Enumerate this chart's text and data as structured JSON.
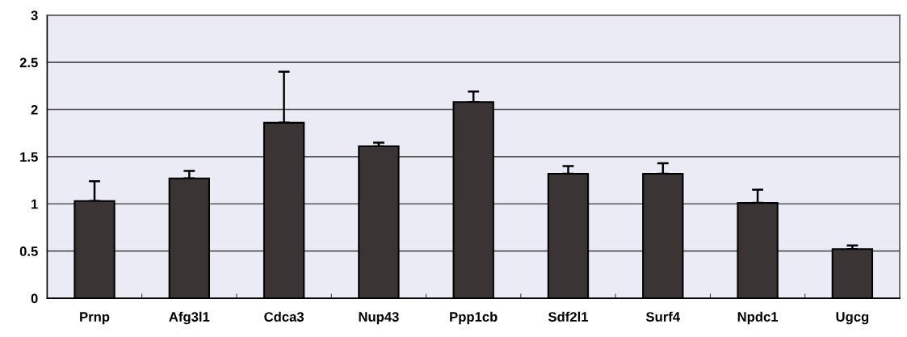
{
  "chart_data": {
    "type": "bar",
    "categories": [
      "Prnp",
      "Afg3l1",
      "Cdca3",
      "Nup43",
      "Ppp1cb",
      "Sdf2l1",
      "Surf4",
      "Npdc1",
      "Ugcg"
    ],
    "values": [
      1.03,
      1.27,
      1.86,
      1.61,
      2.08,
      1.32,
      1.32,
      1.01,
      0.52
    ],
    "errors": [
      [
        1.03,
        1.24
      ],
      [
        1.27,
        1.35
      ],
      [
        1.86,
        2.4
      ],
      [
        1.61,
        1.65
      ],
      [
        2.08,
        2.19
      ],
      [
        1.32,
        1.4
      ],
      [
        1.32,
        1.43
      ],
      [
        1.01,
        1.15
      ],
      [
        0.52,
        0.56
      ]
    ],
    "color": "#3a3434",
    "ylim": [
      0,
      3
    ],
    "yticks": [
      0,
      0.5,
      1,
      1.5,
      2,
      2.5,
      3
    ],
    "grid": "y"
  }
}
